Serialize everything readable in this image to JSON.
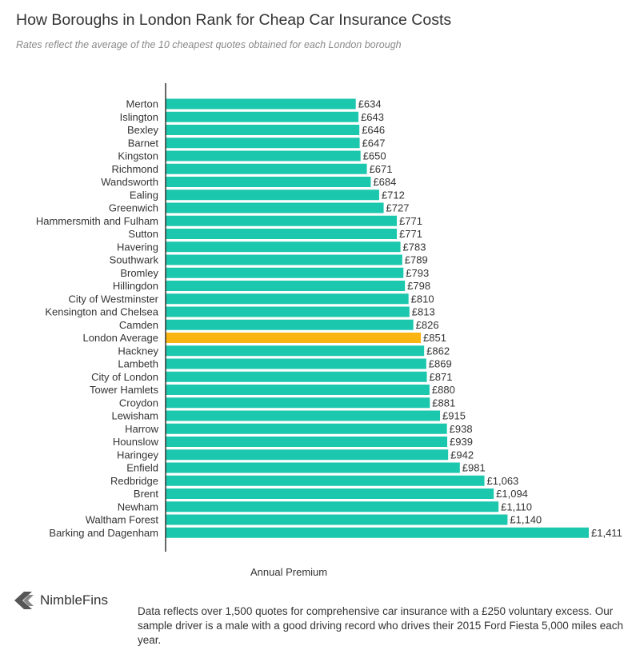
{
  "title": "How Boroughs in London Rank for Cheap Car Insurance Costs",
  "subtitle": "Rates reflect the average of the 10 cheapest quotes obtained for each London borough",
  "brand": {
    "name": "NimbleFins",
    "logo_icon": "chevron-left-logo"
  },
  "footnote": "Data reflects over 1,500 quotes for comprehensive car insurance with a £250 voluntary excess. Our sample driver is a male with a good driving record who drives their 2015 Ford Fiesta 5,000 miles each year.",
  "colors": {
    "bar": "#1bc7ad",
    "highlight": "#fbb512",
    "axis": "#333333"
  },
  "chart_data": {
    "type": "bar",
    "orientation": "horizontal",
    "title": "How Boroughs in London Rank for Cheap Car Insurance Costs",
    "xlabel": "Annual Premium",
    "ylabel": "",
    "highlight_category": "London Average",
    "grid": false,
    "categories": [
      "Merton",
      "Islington",
      "Bexley",
      "Barnet",
      "Kingston",
      "Richmond",
      "Wandsworth",
      "Ealing",
      "Greenwich",
      "Hammersmith and Fulham",
      "Sutton",
      "Havering",
      "Southwark",
      "Bromley",
      "Hillingdon",
      "City of Westminster",
      "Kensington and Chelsea",
      "Camden",
      "London Average",
      "Hackney",
      "Lambeth",
      "City of London",
      "Tower Hamlets",
      "Croydon",
      "Lewisham",
      "Harrow",
      "Hounslow",
      "Haringey",
      "Enfield",
      "Redbridge",
      "Brent",
      "Newham",
      "Waltham Forest",
      "Barking and Dagenham"
    ],
    "values": [
      634,
      643,
      646,
      647,
      650,
      671,
      684,
      712,
      727,
      771,
      771,
      783,
      789,
      793,
      798,
      810,
      813,
      826,
      851,
      862,
      869,
      871,
      880,
      881,
      915,
      938,
      939,
      942,
      981,
      1063,
      1094,
      1110,
      1140,
      1411
    ],
    "labels": [
      "£634",
      "£643",
      "£646",
      "£647",
      "£650",
      "£671",
      "£684",
      "£712",
      "£727",
      "£771",
      "£771",
      "£783",
      "£789",
      "£793",
      "£798",
      "£810",
      "£813",
      "£826",
      "£851",
      "£862",
      "£869",
      "£871",
      "£880",
      "£881",
      "£915",
      "£938",
      "£939",
      "£942",
      "£981",
      "£1,063",
      "£1,094",
      "£1,110",
      "£1,140",
      "£1,411"
    ],
    "xlim": [
      0,
      1411
    ]
  }
}
